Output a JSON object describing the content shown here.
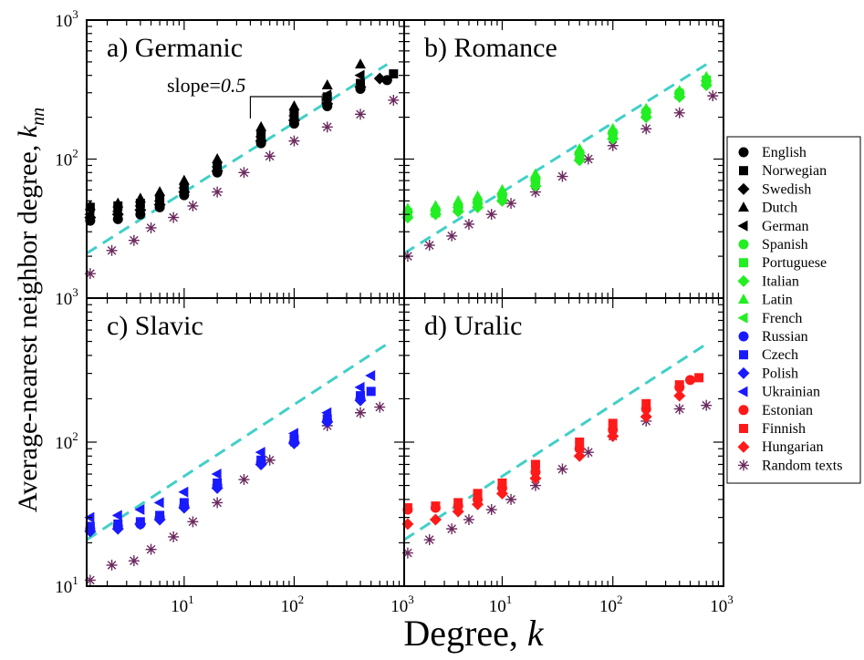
{
  "chart_data": {
    "type": "scatter",
    "xlabel": "Degree, ",
    "xlabel_var": "k",
    "ylabel": "Average-nearest neighbor degree,  ",
    "ylabel_var": "k",
    "ylabel_sub": "nn",
    "x_scale": "log",
    "y_scale": "log",
    "xlim": [
      1.3,
      1000
    ],
    "ylim": [
      10,
      1000
    ],
    "x_tick_labels": [
      "10",
      "10",
      "10"
    ],
    "x_tick_exps": [
      "1",
      "2",
      "3"
    ],
    "y_tick_labels": [
      "10",
      "10",
      "10"
    ],
    "y_tick_exps": [
      "1",
      "2",
      "3"
    ],
    "grid": false,
    "legend_position": "right",
    "slope_annotation": {
      "text": "slope=",
      "value": "0.5",
      "panel": 0
    },
    "reference_line": {
      "color": "#40d0c8",
      "style": "dashed",
      "slope": 0.5,
      "x": [
        1.3,
        700
      ],
      "y": [
        21,
        480
      ]
    },
    "colors": {
      "germanic": "#000000",
      "romance": "#22ee22",
      "slavic": "#1a1aff",
      "uralic": "#ff1a1a",
      "random": "#6b2a5e"
    },
    "legend": [
      {
        "name": "English",
        "color": "#000000",
        "marker": "circle"
      },
      {
        "name": "Norwegian",
        "color": "#000000",
        "marker": "square"
      },
      {
        "name": "Swedish",
        "color": "#000000",
        "marker": "diamond"
      },
      {
        "name": "Dutch",
        "color": "#000000",
        "marker": "triangle-up"
      },
      {
        "name": "German",
        "color": "#000000",
        "marker": "triangle-left"
      },
      {
        "name": "Spanish",
        "color": "#22ee22",
        "marker": "circle"
      },
      {
        "name": "Portuguese",
        "color": "#22ee22",
        "marker": "square"
      },
      {
        "name": "Italian",
        "color": "#22ee22",
        "marker": "diamond"
      },
      {
        "name": "Latin",
        "color": "#22ee22",
        "marker": "triangle-up"
      },
      {
        "name": "French",
        "color": "#22ee22",
        "marker": "triangle-left"
      },
      {
        "name": "Russian",
        "color": "#1a1aff",
        "marker": "circle"
      },
      {
        "name": "Czech",
        "color": "#1a1aff",
        "marker": "square"
      },
      {
        "name": "Polish",
        "color": "#1a1aff",
        "marker": "diamond"
      },
      {
        "name": "Ukrainian",
        "color": "#1a1aff",
        "marker": "triangle-left"
      },
      {
        "name": "Estonian",
        "color": "#ff1a1a",
        "marker": "circle"
      },
      {
        "name": "Finnish",
        "color": "#ff1a1a",
        "marker": "square"
      },
      {
        "name": "Hungarian",
        "color": "#ff1a1a",
        "marker": "diamond"
      },
      {
        "name": "Random texts",
        "color": "#6b2a5e",
        "marker": "asterisk"
      }
    ],
    "panels": [
      {
        "label": "a) Germanic",
        "color": "#000000",
        "series": [
          {
            "name": "English",
            "marker": "circle",
            "x": [
              1.4,
              2.5,
              4,
              6,
              10,
              20,
              50,
              100,
              200,
              400,
              700
            ],
            "y": [
              36,
              37,
              40,
              45,
              55,
              80,
              130,
              180,
              240,
              320,
              370
            ]
          },
          {
            "name": "Norwegian",
            "marker": "square",
            "x": [
              1.4,
              2.5,
              4,
              6,
              10,
              20,
              50,
              100,
              200,
              400,
              800
            ],
            "y": [
              45,
              46,
              48,
              52,
              62,
              90,
              150,
              210,
              280,
              350,
              410
            ]
          },
          {
            "name": "Swedish",
            "marker": "diamond",
            "x": [
              1.4,
              2.5,
              4,
              6,
              10,
              20,
              50,
              100,
              200,
              400,
              600
            ],
            "y": [
              38,
              40,
              43,
              47,
              58,
              82,
              135,
              190,
              250,
              330,
              380
            ]
          },
          {
            "name": "Dutch",
            "marker": "triangle-up",
            "x": [
              1.4,
              2.5,
              4,
              6,
              10,
              20,
              50,
              100,
              200,
              400
            ],
            "y": [
              46,
              48,
              52,
              58,
              70,
              100,
              170,
              240,
              340,
              480
            ]
          },
          {
            "name": "German",
            "marker": "triangle-left",
            "x": [
              1.4,
              2.5,
              4,
              6,
              10,
              20,
              50,
              100,
              200,
              400
            ],
            "y": [
              40,
              42,
              46,
              50,
              62,
              88,
              145,
              205,
              290,
              400
            ]
          },
          {
            "name": "Random texts",
            "marker": "asterisk",
            "x": [
              1.4,
              2.2,
              3.5,
              5,
              8,
              12,
              20,
              35,
              60,
              100,
              200,
              400,
              800
            ],
            "y": [
              15,
              22,
              26,
              32,
              38,
              46,
              58,
              80,
              105,
              135,
              170,
              210,
              265
            ]
          }
        ]
      },
      {
        "label": "b) Romance",
        "color": "#22ee22",
        "series": [
          {
            "name": "Spanish",
            "marker": "circle",
            "x": [
              1.4,
              2.5,
              4,
              6,
              10,
              20,
              50,
              100,
              200,
              400,
              700
            ],
            "y": [
              42,
              43,
              45,
              48,
              55,
              72,
              110,
              155,
              220,
              300,
              360
            ]
          },
          {
            "name": "Portuguese",
            "marker": "square",
            "x": [
              1.4,
              2.5,
              4,
              6,
              10,
              20,
              50,
              100,
              200,
              400,
              700
            ],
            "y": [
              40,
              41,
              44,
              47,
              53,
              68,
              105,
              150,
              210,
              290,
              370
            ]
          },
          {
            "name": "Italian",
            "marker": "diamond",
            "x": [
              1.4,
              2.5,
              4,
              6,
              10,
              20,
              50,
              100,
              200,
              400,
              700
            ],
            "y": [
              38,
              40,
              42,
              45,
              50,
              64,
              98,
              140,
              200,
              280,
              340
            ]
          },
          {
            "name": "Latin",
            "marker": "triangle-up",
            "x": [
              1.4,
              2.5,
              4,
              6,
              10,
              20,
              50,
              100,
              200,
              400,
              700
            ],
            "y": [
              44,
              46,
              50,
              54,
              60,
              78,
              118,
              165,
              230,
              310,
              390
            ]
          },
          {
            "name": "French",
            "marker": "triangle-left",
            "x": [
              1.4,
              2.5,
              4,
              6,
              10,
              20,
              50,
              100,
              200,
              400,
              700
            ],
            "y": [
              41,
              42,
              45,
              49,
              56,
              70,
              108,
              152,
              215,
              295,
              365
            ]
          },
          {
            "name": "Random texts",
            "marker": "asterisk",
            "x": [
              1.4,
              2.2,
              3.5,
              5,
              8,
              12,
              20,
              35,
              60,
              100,
              200,
              400,
              800
            ],
            "y": [
              20,
              24,
              28,
              34,
              40,
              48,
              58,
              75,
              100,
              125,
              165,
              215,
              285
            ]
          }
        ]
      },
      {
        "label": "c) Slavic",
        "color": "#1a1aff",
        "series": [
          {
            "name": "Russian",
            "marker": "circle",
            "x": [
              1.4,
              2.5,
              4,
              6,
              10,
              20,
              50,
              100,
              200,
              400
            ],
            "y": [
              25,
              26,
              27,
              30,
              36,
              50,
              72,
              100,
              140,
              200
            ]
          },
          {
            "name": "Czech",
            "marker": "square",
            "x": [
              1.4,
              2.5,
              4,
              6,
              10,
              20,
              50,
              100,
              200,
              400,
              500
            ],
            "y": [
              26,
              27,
              28,
              31,
              38,
              52,
              75,
              105,
              145,
              210,
              225
            ]
          },
          {
            "name": "Polish",
            "marker": "diamond",
            "x": [
              1.4,
              2.5,
              4,
              6,
              10,
              20,
              50,
              100,
              200,
              400
            ],
            "y": [
              24,
              25,
              27,
              29,
              35,
              48,
              70,
              98,
              138,
              195
            ]
          },
          {
            "name": "Ukrainian",
            "marker": "triangle-left",
            "x": [
              1.4,
              2.5,
              4,
              6,
              10,
              20,
              50,
              100,
              200,
              400,
              500
            ],
            "y": [
              30,
              31,
              34,
              38,
              45,
              60,
              85,
              115,
              160,
              240,
              290
            ]
          },
          {
            "name": "Random texts",
            "marker": "asterisk",
            "x": [
              1.4,
              2.2,
              3.5,
              5,
              8,
              12,
              20,
              35,
              60,
              100,
              200,
              400,
              600
            ],
            "y": [
              11,
              14,
              15,
              18,
              22,
              28,
              38,
              55,
              75,
              100,
              130,
              160,
              175
            ]
          }
        ]
      },
      {
        "label": "d) Uralic",
        "color": "#ff1a1a",
        "series": [
          {
            "name": "Estonian",
            "marker": "circle",
            "x": [
              1.4,
              2.5,
              4,
              6,
              10,
              20,
              50,
              100,
              200,
              400,
              500
            ],
            "y": [
              34,
              35,
              36,
              40,
              48,
              62,
              90,
              122,
              170,
              240,
              270
            ]
          },
          {
            "name": "Finnish",
            "marker": "square",
            "x": [
              1.4,
              2.5,
              4,
              6,
              10,
              20,
              50,
              100,
              200,
              400,
              600
            ],
            "y": [
              35,
              36,
              38,
              44,
              52,
              70,
              100,
              135,
              185,
              250,
              280
            ]
          },
          {
            "name": "Hungarian",
            "marker": "diamond",
            "x": [
              1.4,
              2.5,
              4,
              6,
              10,
              20,
              50,
              100,
              200,
              400
            ],
            "y": [
              27,
              29,
              33,
              37,
              44,
              56,
              80,
              110,
              150,
              210
            ]
          },
          {
            "name": "Random texts",
            "marker": "asterisk",
            "x": [
              1.4,
              2.2,
              3.5,
              5,
              8,
              12,
              20,
              35,
              60,
              100,
              200,
              400,
              700
            ],
            "y": [
              17,
              21,
              25,
              29,
              34,
              40,
              50,
              65,
              85,
              110,
              140,
              170,
              180
            ]
          }
        ]
      }
    ]
  }
}
